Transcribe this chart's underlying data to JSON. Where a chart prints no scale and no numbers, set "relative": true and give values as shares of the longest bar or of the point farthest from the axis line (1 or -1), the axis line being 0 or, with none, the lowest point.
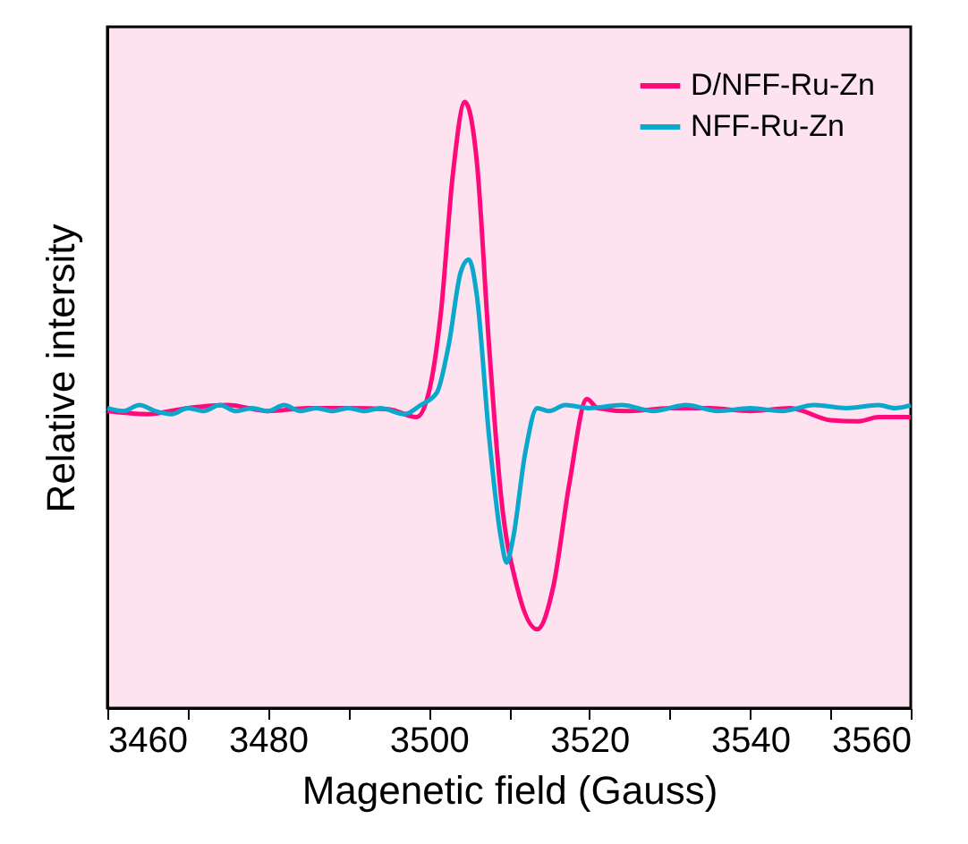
{
  "chart_data": {
    "type": "line",
    "relative": true,
    "xlabel": "Magenetic field (Gauss)",
    "ylabel": "Relative intersity",
    "legend": "top right",
    "tick_labels": "x",
    "xlim": [
      3460,
      3560
    ],
    "xticks": [
      3460,
      {
        "value": 3470,
        "label": null
      },
      3480,
      {
        "value": 3490,
        "label": null
      },
      3500,
      {
        "value": 3510,
        "label": null
      },
      3520,
      {
        "value": 3530,
        "label": null
      },
      3540,
      {
        "value": 3550,
        "label": null
      },
      3560
    ],
    "series": [
      {
        "name": "D/NFF-Ru-Zn",
        "color": "#ff0a7a",
        "x": [
          3460,
          3465,
          3470,
          3475,
          3480,
          3485,
          3490,
          3495,
          3498.5,
          3500,
          3501.5,
          3503,
          3504.5,
          3506,
          3507.5,
          3509,
          3511,
          3513.5,
          3515.5,
          3517.5,
          3519.7,
          3521,
          3525,
          3530,
          3535,
          3540,
          3545,
          3550,
          3553.5,
          3556,
          3560
        ],
        "values": [
          0.49,
          0.485,
          0.495,
          0.5,
          0.49,
          0.495,
          0.495,
          0.493,
          0.48,
          0.52,
          0.65,
          0.88,
          1.0,
          0.9,
          0.6,
          0.35,
          0.2,
          0.13,
          0.2,
          0.37,
          0.51,
          0.495,
          0.49,
          0.495,
          0.495,
          0.49,
          0.495,
          0.475,
          0.473,
          0.48,
          0.48
        ]
      },
      {
        "name": "NFF-Ru-Zn",
        "color": "#0aa8cc",
        "x": [
          3460,
          3462,
          3464,
          3466,
          3468,
          3470,
          3472,
          3474,
          3476,
          3478,
          3480,
          3482,
          3484,
          3486,
          3488,
          3490,
          3492,
          3494,
          3497,
          3499,
          3501,
          3502.5,
          3504,
          3505,
          3506,
          3507.5,
          3509,
          3509.7,
          3510.5,
          3512,
          3513.5,
          3515,
          3517,
          3520,
          3524,
          3528,
          3532,
          3536,
          3540,
          3544,
          3548,
          3552,
          3556,
          3558,
          3560
        ],
        "values": [
          0.495,
          0.49,
          0.5,
          0.49,
          0.485,
          0.495,
          0.49,
          0.5,
          0.49,
          0.495,
          0.49,
          0.5,
          0.49,
          0.495,
          0.49,
          0.495,
          0.49,
          0.495,
          0.485,
          0.5,
          0.52,
          0.6,
          0.72,
          0.74,
          0.68,
          0.45,
          0.28,
          0.24,
          0.28,
          0.42,
          0.495,
          0.49,
          0.5,
          0.495,
          0.5,
          0.49,
          0.5,
          0.49,
          0.495,
          0.49,
          0.5,
          0.495,
          0.5,
          0.495,
          0.5
        ]
      }
    ]
  }
}
